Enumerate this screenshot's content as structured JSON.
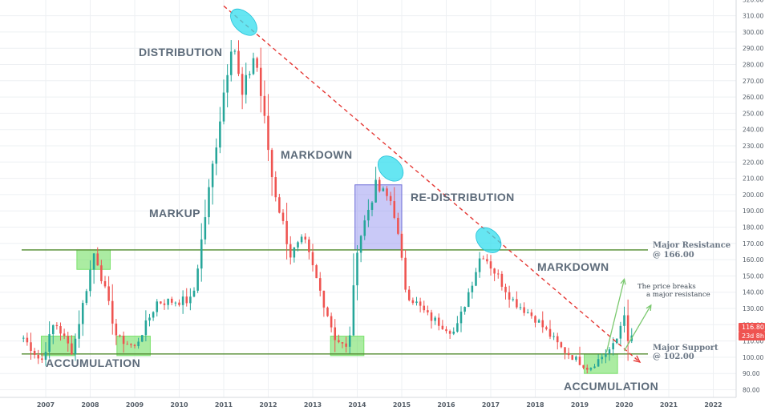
{
  "chart_data": {
    "type": "candlestick",
    "y_axis": {
      "position": "right",
      "ylim": [
        78,
        322
      ],
      "ticks": [
        "80.00",
        "90.00",
        "100.00",
        "110.00",
        "120.00",
        "130.00",
        "140.00",
        "150.00",
        "160.00",
        "170.00",
        "180.00",
        "190.00",
        "200.00",
        "210.00",
        "220.00",
        "230.00",
        "240.00",
        "250.00",
        "260.00",
        "270.00",
        "280.00",
        "290.00",
        "300.00",
        "310.00",
        "320.00"
      ]
    },
    "x_axis": {
      "ticks": [
        "2007",
        "2008",
        "2009",
        "2010",
        "2011",
        "2012",
        "2013",
        "2014",
        "2015",
        "2016",
        "2017",
        "2018",
        "2019",
        "2020",
        "2021",
        "2022"
      ]
    },
    "grid": true,
    "colors": {
      "up": "#26a69a",
      "down": "#ef5350",
      "level_line": "#4f8a2c",
      "trendline": "#e53935",
      "highlight_green": "#66dd55",
      "ellipse": "#33ddee",
      "box": "#8888ee",
      "arrow": "#7bc96f"
    },
    "price_key_points": [
      {
        "date": "2006.5",
        "price": 112
      },
      {
        "date": "2006.9",
        "price": 97
      },
      {
        "date": "2007.2",
        "price": 122
      },
      {
        "date": "2007.6",
        "price": 103
      },
      {
        "date": "2008.1",
        "price": 166
      },
      {
        "date": "2008.6",
        "price": 112
      },
      {
        "date": "2009.0",
        "price": 106
      },
      {
        "date": "2009.5",
        "price": 134
      },
      {
        "date": "2010.3",
        "price": 135
      },
      {
        "date": "2011.2",
        "price": 300
      },
      {
        "date": "2011.4",
        "price": 258
      },
      {
        "date": "2011.7",
        "price": 288
      },
      {
        "date": "2012.1",
        "price": 208
      },
      {
        "date": "2012.5",
        "price": 163
      },
      {
        "date": "2012.8",
        "price": 172
      },
      {
        "date": "2013.5",
        "price": 112
      },
      {
        "date": "2013.8",
        "price": 104
      },
      {
        "date": "2014.0",
        "price": 168
      },
      {
        "date": "2014.4",
        "price": 205
      },
      {
        "date": "2014.8",
        "price": 195
      },
      {
        "date": "2015.1",
        "price": 140
      },
      {
        "date": "2015.6",
        "price": 125
      },
      {
        "date": "2016.2",
        "price": 115
      },
      {
        "date": "2016.8",
        "price": 165
      },
      {
        "date": "2017.5",
        "price": 135
      },
      {
        "date": "2018.0",
        "price": 124
      },
      {
        "date": "2018.6",
        "price": 105
      },
      {
        "date": "2019.2",
        "price": 93
      },
      {
        "date": "2019.8",
        "price": 108
      },
      {
        "date": "2020.0",
        "price": 128
      },
      {
        "date": "2020.1",
        "price": 104
      },
      {
        "date": "2020.2",
        "price": 116.8
      }
    ],
    "levels": [
      {
        "price": 166,
        "label": "Major Resistance",
        "sublabel": "@ 166.00"
      },
      {
        "price": 102,
        "label": "Major Support",
        "sublabel": "@ 102.00"
      }
    ],
    "trendline": [
      {
        "date": "2011.0",
        "price": 316
      },
      {
        "date": "2020.35",
        "price": 97
      }
    ],
    "phases": [
      "ACCUMULATION",
      "MARKUP",
      "DISTRIBUTION",
      "MARKDOWN",
      "RE-DISTRIBUTION",
      "MARKDOWN",
      "ACCUMULATION"
    ],
    "annotations": [
      "The price breaks",
      "a major resistance"
    ],
    "badges": [
      {
        "text": "116.80",
        "color": "#ef5350"
      },
      {
        "text": "23d 8h",
        "color": "#ef5350"
      }
    ]
  }
}
